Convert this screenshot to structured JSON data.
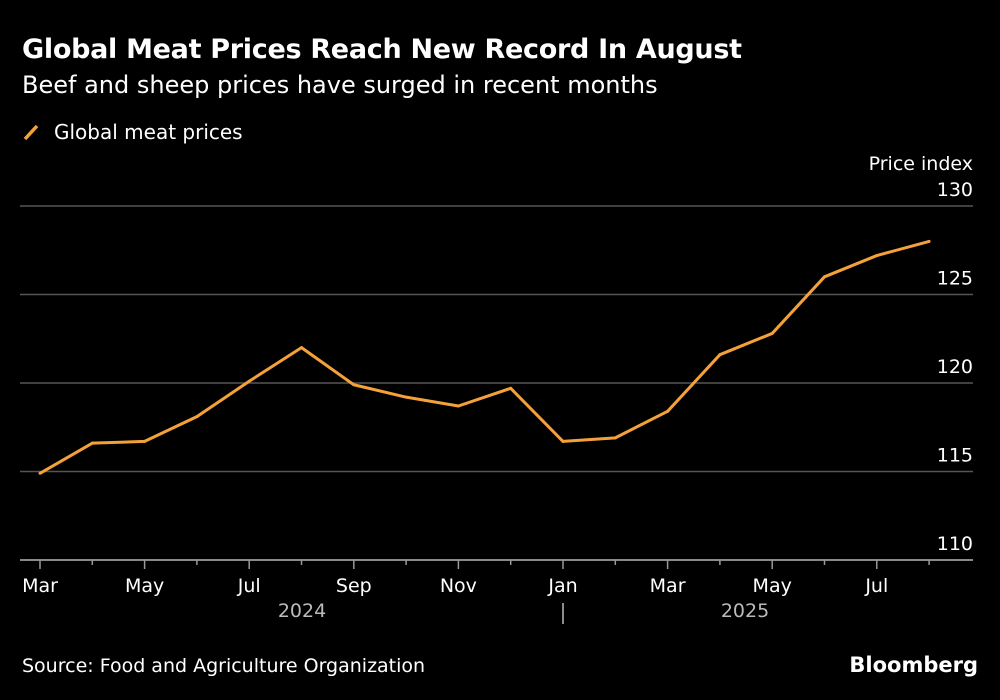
{
  "title": "Global Meat Prices Reach New Record In August",
  "subtitle": "Beef and sheep prices have surged in recent months",
  "source": "Source: Food and Agriculture Organization",
  "brand": "Bloomberg",
  "colors": {
    "series": "#f5a13a",
    "grid": "#555555",
    "background": "#000000"
  },
  "chart_data": {
    "type": "line",
    "ylabel": "Price index",
    "ylim": [
      110,
      130
    ],
    "yticks": [
      110,
      115,
      120,
      125,
      130
    ],
    "grid": true,
    "legend_position": "top-left",
    "y_axis_side": "right",
    "x": [
      "2024-03",
      "2024-04",
      "2024-05",
      "2024-06",
      "2024-07",
      "2024-08",
      "2024-09",
      "2024-10",
      "2024-11",
      "2024-12",
      "2025-01",
      "2025-02",
      "2025-03",
      "2025-04",
      "2025-05",
      "2025-06",
      "2025-07",
      "2025-08"
    ],
    "xtick_labels": [
      "Mar",
      "May",
      "Jul",
      "Sep",
      "Nov",
      "Jan",
      "Mar",
      "May",
      "Jul"
    ],
    "year_labels": [
      "2024",
      "2025"
    ],
    "series": [
      {
        "name": "Global meat prices",
        "values": [
          114.9,
          116.6,
          116.7,
          118.1,
          120.1,
          122.0,
          119.9,
          119.2,
          118.7,
          119.7,
          116.7,
          116.9,
          118.4,
          121.6,
          122.8,
          126.0,
          127.2,
          128.0
        ]
      }
    ]
  }
}
